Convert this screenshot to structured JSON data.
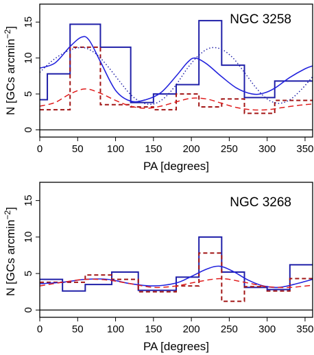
{
  "colors": {
    "hist_solid": "#1f1fa8",
    "hist_dashed": "#a11414",
    "fit_blue": "#2222dd",
    "fit_red": "#e01b1b",
    "axes": "#000000"
  },
  "chart_data": [
    {
      "type": "line",
      "title": "NGC 3258",
      "xlabel": "PA [degrees]",
      "ylabel": "N [GCs arcmin",
      "ylabel_sup": "−2",
      "ylabel_close": "]",
      "xlim": [
        0,
        360
      ],
      "ylim": [
        -1,
        17.5
      ],
      "xticks": [
        0,
        50,
        100,
        150,
        200,
        250,
        300,
        350
      ],
      "yticks": [
        0,
        5,
        10,
        15
      ],
      "series": [
        {
          "kind": "step",
          "color": "#1f1fa8",
          "dash": false,
          "edges": [
            0,
            10,
            40,
            80,
            120,
            150,
            180,
            210,
            240,
            270,
            310,
            360
          ],
          "values": [
            4.2,
            7.8,
            14.7,
            11.5,
            3.8,
            5.0,
            6.3,
            15.2,
            9.0,
            4.5,
            6.8
          ]
        },
        {
          "kind": "step",
          "color": "#a11414",
          "dash": true,
          "edges": [
            0,
            10,
            40,
            60,
            80,
            120,
            150,
            180,
            210,
            240,
            270,
            310,
            360
          ],
          "values": [
            2.8,
            2.8,
            11.5,
            11.5,
            3.5,
            3.2,
            2.8,
            5.0,
            3.2,
            4.3,
            2.3,
            4.1
          ]
        },
        {
          "kind": "curve",
          "color": "#2222dd",
          "dash": "solid",
          "x": [
            0,
            20,
            40,
            55,
            65,
            80,
            100,
            120,
            140,
            160,
            180,
            195,
            205,
            220,
            240,
            260,
            280,
            295,
            310,
            330,
            350,
            360
          ],
          "y": [
            8.6,
            9.3,
            11.6,
            12.9,
            12.5,
            9.5,
            5.5,
            4.0,
            4.2,
            5.2,
            7.5,
            9.4,
            10.0,
            9.2,
            7.4,
            5.8,
            5.0,
            5.1,
            5.8,
            7.3,
            8.5,
            8.9
          ]
        },
        {
          "kind": "curve",
          "color": "#1f1fa8",
          "dash": "dotted",
          "x": [
            0,
            15,
            30,
            45,
            60,
            75,
            90,
            105,
            120,
            135,
            150,
            165,
            180,
            195,
            210,
            225,
            240,
            255,
            270,
            285,
            300,
            315,
            330,
            345,
            360
          ],
          "y": [
            8.0,
            9.5,
            10.6,
            11.3,
            11.4,
            10.5,
            8.8,
            6.8,
            4.9,
            3.8,
            3.6,
            4.5,
            6.3,
            8.6,
            10.4,
            11.4,
            11.2,
            10.0,
            8.0,
            5.9,
            4.3,
            3.7,
            4.2,
            5.6,
            7.4
          ]
        },
        {
          "kind": "curve",
          "color": "#e01b1b",
          "dash": "dashed",
          "x": [
            0,
            20,
            40,
            60,
            80,
            100,
            120,
            140,
            160,
            180,
            200,
            220,
            240,
            260,
            280,
            300,
            320,
            340,
            360
          ],
          "y": [
            3.3,
            3.8,
            5.0,
            5.7,
            5.1,
            4.1,
            3.3,
            3.0,
            3.3,
            3.9,
            4.4,
            4.3,
            3.7,
            3.1,
            2.8,
            2.8,
            3.1,
            3.4,
            3.6
          ]
        }
      ]
    },
    {
      "type": "line",
      "title": "NGC 3268",
      "xlabel": "PA [degrees]",
      "ylabel": "N [GCs arcmin",
      "ylabel_sup": "−2",
      "ylabel_close": "]",
      "xlim": [
        0,
        360
      ],
      "ylim": [
        -1,
        17.5
      ],
      "xticks": [
        0,
        50,
        100,
        150,
        200,
        250,
        300,
        350
      ],
      "yticks": [
        0,
        5,
        10,
        15
      ],
      "series": [
        {
          "kind": "step",
          "color": "#1f1fa8",
          "dash": false,
          "edges": [
            0,
            30,
            60,
            95,
            130,
            180,
            210,
            240,
            270,
            300,
            330,
            360
          ],
          "values": [
            4.2,
            2.6,
            3.5,
            5.2,
            2.7,
            4.5,
            10.0,
            5.2,
            3.1,
            2.8,
            6.2
          ]
        },
        {
          "kind": "step",
          "color": "#a11414",
          "dash": true,
          "edges": [
            0,
            30,
            60,
            95,
            130,
            180,
            210,
            240,
            270,
            300,
            330,
            360
          ],
          "values": [
            3.8,
            3.8,
            4.8,
            4.2,
            2.5,
            3.3,
            7.8,
            1.2,
            3.2,
            2.6,
            4.3
          ]
        },
        {
          "kind": "curve",
          "color": "#2222dd",
          "dash": "solid",
          "x": [
            0,
            30,
            60,
            90,
            120,
            150,
            180,
            200,
            220,
            237,
            255,
            275,
            295,
            315,
            335,
            360
          ],
          "y": [
            3.6,
            3.8,
            4.2,
            4.2,
            3.6,
            3.3,
            3.7,
            4.6,
            5.6,
            6.0,
            5.3,
            4.1,
            3.3,
            3.1,
            3.5,
            4.2
          ]
        },
        {
          "kind": "curve",
          "color": "#e01b1b",
          "dash": "dashed",
          "x": [
            0,
            30,
            60,
            90,
            120,
            150,
            180,
            210,
            240,
            270,
            300,
            330,
            360
          ],
          "y": [
            3.3,
            3.8,
            4.2,
            4.1,
            3.6,
            3.1,
            3.3,
            3.9,
            4.3,
            3.8,
            3.2,
            3.1,
            3.4
          ]
        }
      ]
    }
  ]
}
